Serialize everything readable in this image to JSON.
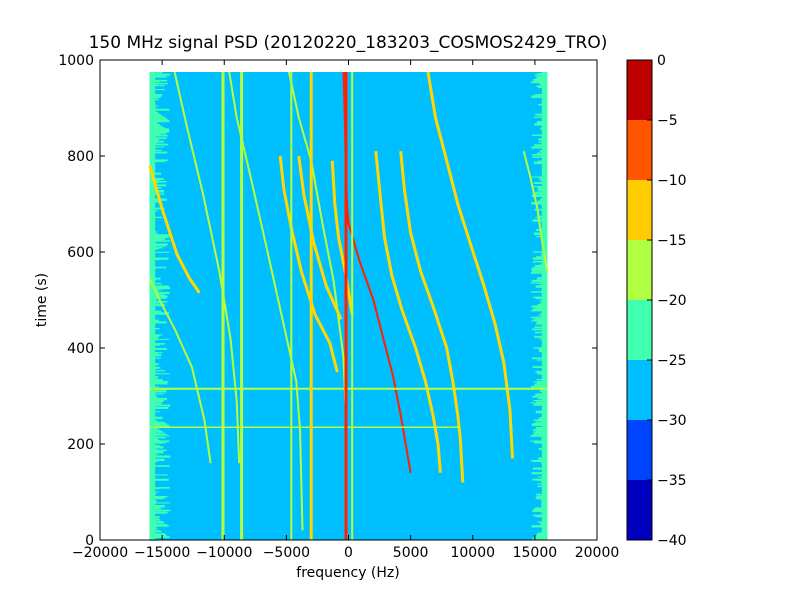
{
  "chart_data": {
    "type": "heatmap",
    "title": "150 MHz signal PSD (20120220_183203_COSMOS2429_TRO)",
    "xlabel": "frequency (Hz)",
    "ylabel": "time (s)",
    "xlim": [
      -20000,
      20000
    ],
    "ylim": [
      0,
      1000
    ],
    "x_ticks": [
      -20000,
      -15000,
      -10000,
      -5000,
      0,
      5000,
      10000,
      15000,
      20000
    ],
    "x_tick_labels": [
      "−20000",
      "−15000",
      "−10000",
      "−5000",
      "0",
      "5000",
      "10000",
      "15000",
      "20000"
    ],
    "y_ticks": [
      0,
      200,
      400,
      600,
      800,
      1000
    ],
    "y_tick_labels": [
      "0",
      "200",
      "400",
      "600",
      "800",
      "1000"
    ],
    "data_extent": {
      "x": [
        -16000,
        16000
      ],
      "y": [
        0,
        975
      ]
    },
    "background_level": -27.5,
    "edge_band_level": -22.5,
    "colorbar": {
      "levels": [
        -40,
        -35,
        -30,
        -25,
        -20,
        -15,
        -10,
        -5,
        0
      ],
      "tick_labels": [
        "−40",
        "−35",
        "−30",
        "−25",
        "−20",
        "−15",
        "−10",
        "−5",
        "0"
      ],
      "colors": [
        "#0000bf",
        "#0044ff",
        "#00bfff",
        "#40ffb0",
        "#b0ff40",
        "#ffcc00",
        "#ff5500",
        "#bf0000"
      ]
    },
    "traces": [
      {
        "name": "",
        "color": "#ffd800",
        "width": 3,
        "points": [
          [
            -16000,
            780
          ],
          [
            -15000,
            690
          ],
          [
            -13800,
            595
          ],
          [
            -12800,
            545
          ],
          [
            -12000,
            515
          ]
        ]
      },
      {
        "name": "",
        "color": "#b4ff3c",
        "width": 2,
        "points": [
          [
            -16000,
            545
          ],
          [
            -15200,
            500
          ],
          [
            -14000,
            440
          ],
          [
            -12600,
            360
          ],
          [
            -11600,
            250
          ],
          [
            -11100,
            160
          ]
        ]
      },
      {
        "name": "",
        "color": "#b4ff3c",
        "width": 2,
        "points": [
          [
            -14000,
            975
          ],
          [
            -13000,
            860
          ],
          [
            -11700,
            720
          ],
          [
            -10400,
            560
          ],
          [
            -9500,
            420
          ],
          [
            -9000,
            290
          ],
          [
            -8800,
            160
          ]
        ]
      },
      {
        "name": "",
        "color": "#b4ff3c",
        "width": 2,
        "points": [
          [
            -9600,
            975
          ],
          [
            -9000,
            880
          ],
          [
            -8000,
            770
          ],
          [
            -6600,
            610
          ],
          [
            -5400,
            470
          ],
          [
            -4200,
            330
          ],
          [
            -3900,
            230
          ],
          [
            -3700,
            20
          ]
        ]
      },
      {
        "name": "",
        "color": "#b4ff3c",
        "width": 2,
        "points": [
          [
            -4800,
            975
          ],
          [
            -4000,
            880
          ],
          [
            -3000,
            790
          ],
          [
            -2100,
            660
          ],
          [
            -1200,
            540
          ],
          [
            -400,
            380
          ],
          [
            -200,
            250
          ]
        ]
      },
      {
        "name": "",
        "color": "#ffd800",
        "width": 3,
        "points": [
          [
            -5500,
            800
          ],
          [
            -5200,
            730
          ],
          [
            -4600,
            650
          ],
          [
            -3800,
            560
          ],
          [
            -2700,
            470
          ],
          [
            -1500,
            410
          ],
          [
            -900,
            350
          ]
        ]
      },
      {
        "name": "",
        "color": "#ffd800",
        "width": 3,
        "points": [
          [
            -4000,
            800
          ],
          [
            -3600,
            720
          ],
          [
            -2800,
            620
          ],
          [
            -1800,
            530
          ],
          [
            -600,
            460
          ]
        ]
      },
      {
        "name": "",
        "color": "#ffd800",
        "width": 3,
        "points": [
          [
            -1300,
            790
          ],
          [
            -1100,
            700
          ],
          [
            -800,
            630
          ],
          [
            -200,
            550
          ],
          [
            300,
            470
          ]
        ]
      },
      {
        "name": "",
        "color": "#ff2000",
        "width": 2,
        "points": [
          [
            -400,
            975
          ],
          [
            -300,
            880
          ],
          [
            -200,
            760
          ],
          [
            -100,
            690
          ],
          [
            0,
            660
          ],
          [
            900,
            580
          ],
          [
            2000,
            500
          ],
          [
            2800,
            420
          ],
          [
            3600,
            340
          ],
          [
            4200,
            260
          ],
          [
            4700,
            185
          ],
          [
            5000,
            140
          ]
        ]
      },
      {
        "name": "",
        "color": "#ffd800",
        "width": 3,
        "points": [
          [
            2200,
            810
          ],
          [
            2500,
            730
          ],
          [
            2900,
            630
          ],
          [
            3500,
            550
          ],
          [
            4300,
            480
          ],
          [
            5400,
            400
          ],
          [
            6200,
            330
          ],
          [
            6800,
            260
          ],
          [
            7200,
            200
          ],
          [
            7400,
            140
          ]
        ]
      },
      {
        "name": "",
        "color": "#ffd800",
        "width": 3,
        "points": [
          [
            4200,
            810
          ],
          [
            4500,
            730
          ],
          [
            5000,
            640
          ],
          [
            5800,
            560
          ],
          [
            6900,
            480
          ],
          [
            7900,
            400
          ],
          [
            8400,
            330
          ],
          [
            8800,
            260
          ],
          [
            9000,
            210
          ],
          [
            9200,
            120
          ]
        ]
      },
      {
        "name": "",
        "color": "#ffd800",
        "width": 3,
        "points": [
          [
            6400,
            975
          ],
          [
            7000,
            880
          ],
          [
            7900,
            790
          ],
          [
            8800,
            700
          ],
          [
            9900,
            610
          ],
          [
            10900,
            530
          ],
          [
            11800,
            450
          ],
          [
            12500,
            370
          ],
          [
            13000,
            270
          ],
          [
            13200,
            170
          ]
        ]
      },
      {
        "name": "",
        "color": "#b4ff3c",
        "width": 2,
        "points": [
          [
            14100,
            810
          ],
          [
            14600,
            760
          ],
          [
            15200,
            690
          ],
          [
            15600,
            620
          ],
          [
            16000,
            560
          ]
        ]
      },
      {
        "name": "",
        "color": "#b4ff3c",
        "width": 2,
        "points": [
          [
            -16000,
            315
          ],
          [
            16000,
            315
          ]
        ]
      },
      {
        "name": "",
        "color": "#b4ff3c",
        "width": 1.5,
        "points": [
          [
            -16000,
            235
          ],
          [
            9000,
            235
          ]
        ]
      },
      {
        "name": "",
        "color": "#b4ff3c",
        "width": 3,
        "points": [
          [
            -10100,
            975
          ],
          [
            -10100,
            0
          ]
        ]
      },
      {
        "name": "",
        "color": "#b4ff3c",
        "width": 3,
        "points": [
          [
            -8600,
            975
          ],
          [
            -8600,
            0
          ]
        ]
      },
      {
        "name": "",
        "color": "#b4ff3c",
        "width": 2,
        "points": [
          [
            -4600,
            975
          ],
          [
            -4600,
            0
          ]
        ]
      },
      {
        "name": "",
        "color": "#ffd800",
        "width": 3,
        "points": [
          [
            -3000,
            975
          ],
          [
            -3000,
            0
          ]
        ]
      },
      {
        "name": "",
        "color": "#ff2000",
        "width": 3,
        "points": [
          [
            -200,
            975
          ],
          [
            -200,
            0
          ]
        ]
      },
      {
        "name": "",
        "color": "#b4ff3c",
        "width": 2,
        "points": [
          [
            300,
            975
          ],
          [
            300,
            0
          ]
        ]
      }
    ]
  }
}
